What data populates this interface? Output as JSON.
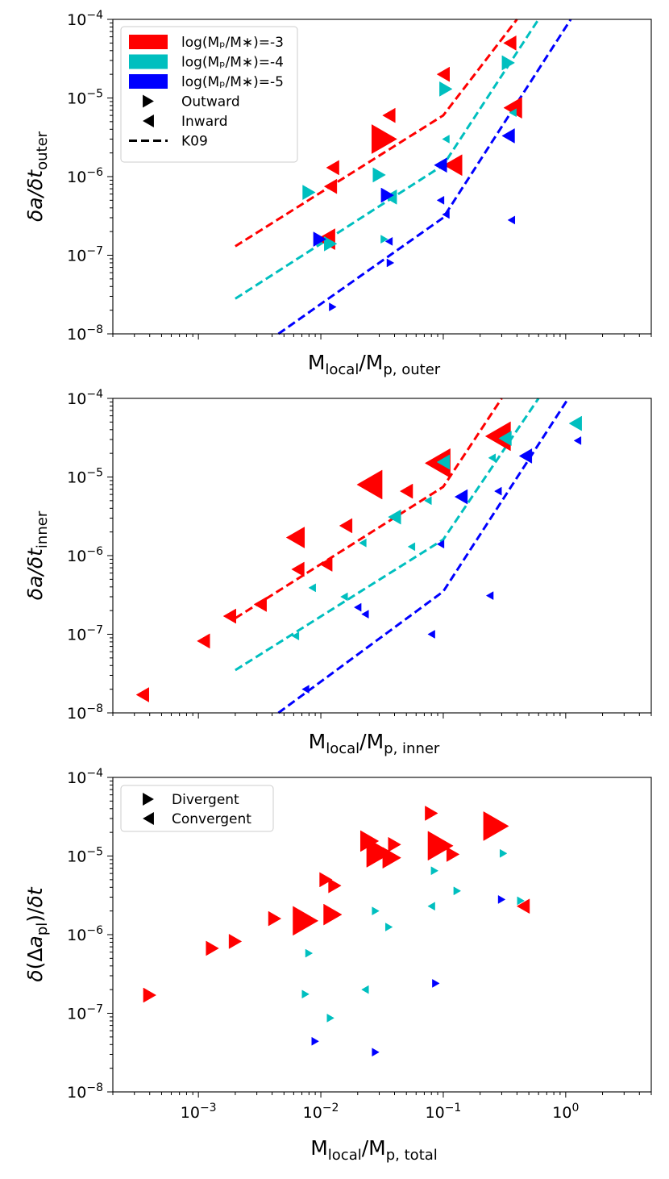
{
  "figure": {
    "type": "multi-panel log-log scatter",
    "colors": {
      "-3": "#ff0000",
      "-4": "#00bfbf",
      "-5": "#0000ff"
    },
    "legend_top": [
      {
        "label": "log(Mₚ/M∗)=-3",
        "kind": "patch",
        "color": "#ff0000"
      },
      {
        "label": "log(Mₚ/M∗)=-4",
        "kind": "patch",
        "color": "#00bfbf"
      },
      {
        "label": "log(Mₚ/M∗)=-5",
        "kind": "patch",
        "color": "#0000ff"
      },
      {
        "label": "Outward",
        "kind": "right"
      },
      {
        "label": "Inward",
        "kind": "left"
      },
      {
        "label": "K09",
        "kind": "dash"
      }
    ],
    "legend_bottom": [
      {
        "label": "Divergent",
        "kind": "right"
      },
      {
        "label": "Convergent",
        "kind": "left"
      }
    ]
  },
  "chart_data": [
    {
      "type": "scatter",
      "panel": "outer",
      "ylabel": "δa/δt_outer",
      "xlabel": "M_local/M_p,outer",
      "xscale": "log",
      "yscale": "log",
      "xlim": [
        0.0002,
        5
      ],
      "ylim": [
        1e-08,
        0.0001
      ],
      "show_xticklabels": false,
      "markers": [
        {
          "x": 0.012,
          "y": 7.5e-07,
          "c": "-3",
          "d": "L",
          "s": 1
        },
        {
          "x": 0.0125,
          "y": 1.3e-06,
          "c": "-3",
          "d": "L",
          "s": 1
        },
        {
          "x": 0.011,
          "y": 1.6e-07,
          "c": "-3",
          "d": "L",
          "s": 2
        },
        {
          "x": 0.033,
          "y": 3e-06,
          "c": "-3",
          "d": "R",
          "s": 3
        },
        {
          "x": 0.036,
          "y": 6e-06,
          "c": "-3",
          "d": "L",
          "s": 1
        },
        {
          "x": 0.1,
          "y": 2e-05,
          "c": "-3",
          "d": "L",
          "s": 1
        },
        {
          "x": 0.12,
          "y": 1.4e-06,
          "c": "-3",
          "d": "L",
          "s": 2
        },
        {
          "x": 0.35,
          "y": 5e-05,
          "c": "-3",
          "d": "L",
          "s": 1
        },
        {
          "x": 0.37,
          "y": 7.5e-06,
          "c": "-3",
          "d": "L",
          "s": 2
        },
        {
          "x": 0.008,
          "y": 6.3e-07,
          "c": "-4",
          "d": "R",
          "s": 1
        },
        {
          "x": 0.012,
          "y": 1.4e-07,
          "c": "-4",
          "d": "R",
          "s": 1
        },
        {
          "x": 0.03,
          "y": 1.05e-06,
          "c": "-4",
          "d": "R",
          "s": 1
        },
        {
          "x": 0.033,
          "y": 1.6e-07,
          "c": "-4",
          "d": "R",
          "s": 0
        },
        {
          "x": 0.037,
          "y": 5.5e-07,
          "c": "-4",
          "d": "L",
          "s": 1
        },
        {
          "x": 0.105,
          "y": 1.3e-05,
          "c": "-4",
          "d": "R",
          "s": 1
        },
        {
          "x": 0.105,
          "y": 3e-06,
          "c": "-4",
          "d": "L",
          "s": 0
        },
        {
          "x": 0.34,
          "y": 2.8e-05,
          "c": "-4",
          "d": "R",
          "s": 1
        },
        {
          "x": 0.37,
          "y": 6.5e-06,
          "c": "-4",
          "d": "L",
          "s": 0
        },
        {
          "x": 0.0098,
          "y": 1.6e-07,
          "c": "-5",
          "d": "R",
          "s": 1
        },
        {
          "x": 0.0125,
          "y": 2.2e-08,
          "c": "-5",
          "d": "R",
          "s": 0
        },
        {
          "x": 0.035,
          "y": 5.8e-07,
          "c": "-5",
          "d": "R",
          "s": 1
        },
        {
          "x": 0.036,
          "y": 1.5e-07,
          "c": "-5",
          "d": "L",
          "s": 0
        },
        {
          "x": 0.037,
          "y": 8e-08,
          "c": "-5",
          "d": "R",
          "s": 0
        },
        {
          "x": 0.095,
          "y": 1.4e-06,
          "c": "-5",
          "d": "L",
          "s": 1
        },
        {
          "x": 0.095,
          "y": 5e-07,
          "c": "-5",
          "d": "L",
          "s": 0
        },
        {
          "x": 0.105,
          "y": 3.3e-07,
          "c": "-5",
          "d": "L",
          "s": 0
        },
        {
          "x": 0.34,
          "y": 3.3e-06,
          "c": "-5",
          "d": "L",
          "s": 1
        },
        {
          "x": 0.36,
          "y": 2.8e-07,
          "c": "-5",
          "d": "L",
          "s": 0
        }
      ],
      "k09_lines": [
        {
          "c": "-3",
          "points": [
            [
              0.002,
              1.3e-07
            ],
            [
              0.1,
              6e-06
            ],
            [
              0.4,
              0.0001
            ]
          ]
        },
        {
          "c": "-4",
          "points": [
            [
              0.002,
              2.8e-08
            ],
            [
              0.1,
              1.4e-06
            ],
            [
              0.6,
              0.0001
            ]
          ]
        },
        {
          "c": "-5",
          "points": [
            [
              0.0045,
              1e-08
            ],
            [
              0.1,
              3e-07
            ],
            [
              1.1,
              0.0001
            ]
          ]
        }
      ]
    },
    {
      "type": "scatter",
      "panel": "inner",
      "ylabel": "δa/δt_inner",
      "xlabel": "M_local/M_p,inner",
      "xscale": "log",
      "yscale": "log",
      "xlim": [
        0.0002,
        5
      ],
      "ylim": [
        1e-08,
        0.0001
      ],
      "show_xticklabels": false,
      "markers": [
        {
          "x": 0.00035,
          "y": 1.7e-08,
          "c": "-3",
          "d": "L",
          "s": 1
        },
        {
          "x": 0.0011,
          "y": 8.2e-08,
          "c": "-3",
          "d": "L",
          "s": 1
        },
        {
          "x": 0.0018,
          "y": 1.7e-07,
          "c": "-3",
          "d": "L",
          "s": 1
        },
        {
          "x": 0.0032,
          "y": 2.4e-07,
          "c": "-3",
          "d": "L",
          "s": 1
        },
        {
          "x": 0.0062,
          "y": 1.7e-06,
          "c": "-3",
          "d": "L",
          "s": 2
        },
        {
          "x": 0.0065,
          "y": 6.7e-07,
          "c": "-3",
          "d": "L",
          "s": 1
        },
        {
          "x": 0.011,
          "y": 7.8e-07,
          "c": "-3",
          "d": "L",
          "s": 1
        },
        {
          "x": 0.016,
          "y": 2.4e-06,
          "c": "-3",
          "d": "L",
          "s": 1
        },
        {
          "x": 0.025,
          "y": 8e-06,
          "c": "-3",
          "d": "L",
          "s": 3
        },
        {
          "x": 0.05,
          "y": 6.6e-06,
          "c": "-3",
          "d": "L",
          "s": 1
        },
        {
          "x": 0.09,
          "y": 1.5e-05,
          "c": "-3",
          "d": "L",
          "s": 3
        },
        {
          "x": 0.28,
          "y": 3.3e-05,
          "c": "-3",
          "d": "L",
          "s": 3
        },
        {
          "x": 0.0062,
          "y": 9.5e-08,
          "c": "-4",
          "d": "L",
          "s": 0
        },
        {
          "x": 0.0085,
          "y": 3.9e-07,
          "c": "-4",
          "d": "L",
          "s": 0
        },
        {
          "x": 0.0155,
          "y": 3e-07,
          "c": "-4",
          "d": "L",
          "s": 0
        },
        {
          "x": 0.022,
          "y": 1.45e-06,
          "c": "-4",
          "d": "L",
          "s": 0
        },
        {
          "x": 0.04,
          "y": 3.1e-06,
          "c": "-4",
          "d": "L",
          "s": 1
        },
        {
          "x": 0.055,
          "y": 1.3e-06,
          "c": "-4",
          "d": "L",
          "s": 0
        },
        {
          "x": 0.075,
          "y": 5e-06,
          "c": "-4",
          "d": "L",
          "s": 0
        },
        {
          "x": 0.1,
          "y": 1.55e-05,
          "c": "-4",
          "d": "L",
          "s": 1
        },
        {
          "x": 0.25,
          "y": 1.75e-05,
          "c": "-4",
          "d": "L",
          "s": 0
        },
        {
          "x": 0.32,
          "y": 3.1e-05,
          "c": "-4",
          "d": "L",
          "s": 1
        },
        {
          "x": 1.2,
          "y": 4.8e-05,
          "c": "-4",
          "d": "L",
          "s": 1
        },
        {
          "x": 0.0075,
          "y": 2e-08,
          "c": "-5",
          "d": "L",
          "s": 0
        },
        {
          "x": 0.02,
          "y": 2.2e-07,
          "c": "-5",
          "d": "L",
          "s": 0
        },
        {
          "x": 0.023,
          "y": 1.8e-07,
          "c": "-5",
          "d": "L",
          "s": 0
        },
        {
          "x": 0.08,
          "y": 1e-07,
          "c": "-5",
          "d": "L",
          "s": 0
        },
        {
          "x": 0.095,
          "y": 1.4e-06,
          "c": "-5",
          "d": "L",
          "s": 0
        },
        {
          "x": 0.14,
          "y": 5.6e-06,
          "c": "-5",
          "d": "L",
          "s": 1
        },
        {
          "x": 0.24,
          "y": 3.1e-07,
          "c": "-5",
          "d": "L",
          "s": 0
        },
        {
          "x": 0.28,
          "y": 6.6e-06,
          "c": "-5",
          "d": "L",
          "s": 0
        },
        {
          "x": 0.47,
          "y": 1.85e-05,
          "c": "-5",
          "d": "L",
          "s": 1
        },
        {
          "x": 1.25,
          "y": 2.9e-05,
          "c": "-5",
          "d": "L",
          "s": 0
        }
      ],
      "k09_lines": [
        {
          "c": "-3",
          "points": [
            [
              0.002,
              1.6e-07
            ],
            [
              0.1,
              7.5e-06
            ],
            [
              0.3,
              0.0001
            ]
          ]
        },
        {
          "c": "-4",
          "points": [
            [
              0.002,
              3.5e-08
            ],
            [
              0.1,
              1.6e-06
            ],
            [
              0.6,
              0.0001
            ]
          ]
        },
        {
          "c": "-5",
          "points": [
            [
              0.0045,
              1e-08
            ],
            [
              0.1,
              3.5e-07
            ],
            [
              1.05,
              0.0001
            ]
          ]
        }
      ]
    },
    {
      "type": "scatter",
      "panel": "total",
      "ylabel": "δ(Δa_pl)/δt",
      "xlabel": "M_local/M_p,total",
      "xscale": "log",
      "yscale": "log",
      "xlim": [
        0.0002,
        5
      ],
      "ylim": [
        1e-08,
        0.0001
      ],
      "show_xticklabels": true,
      "xtick_labels": [
        "10⁻³",
        "10⁻²",
        "10⁻¹",
        "10⁰"
      ],
      "markers": [
        {
          "x": 0.0004,
          "y": 1.7e-07,
          "c": "-3",
          "d": "R",
          "s": 1
        },
        {
          "x": 0.0013,
          "y": 6.7e-07,
          "c": "-3",
          "d": "R",
          "s": 1
        },
        {
          "x": 0.002,
          "y": 8.2e-07,
          "c": "-3",
          "d": "R",
          "s": 1
        },
        {
          "x": 0.0042,
          "y": 1.6e-06,
          "c": "-3",
          "d": "R",
          "s": 1
        },
        {
          "x": 0.0075,
          "y": 1.5e-06,
          "c": "-3",
          "d": "R",
          "s": 3
        },
        {
          "x": 0.011,
          "y": 5e-06,
          "c": "-3",
          "d": "R",
          "s": 1
        },
        {
          "x": 0.0125,
          "y": 1.8e-06,
          "c": "-3",
          "d": "R",
          "s": 2
        },
        {
          "x": 0.013,
          "y": 4.2e-06,
          "c": "-3",
          "d": "R",
          "s": 1
        },
        {
          "x": 0.025,
          "y": 1.55e-05,
          "c": "-3",
          "d": "R",
          "s": 2
        },
        {
          "x": 0.03,
          "y": 1.1e-05,
          "c": "-3",
          "d": "R",
          "s": 3
        },
        {
          "x": 0.038,
          "y": 9.5e-06,
          "c": "-3",
          "d": "R",
          "s": 2
        },
        {
          "x": 0.04,
          "y": 1.4e-05,
          "c": "-3",
          "d": "R",
          "s": 1
        },
        {
          "x": 0.08,
          "y": 3.5e-05,
          "c": "-3",
          "d": "R",
          "s": 1
        },
        {
          "x": 0.095,
          "y": 1.35e-05,
          "c": "-3",
          "d": "R",
          "s": 3
        },
        {
          "x": 0.12,
          "y": 1.05e-05,
          "c": "-3",
          "d": "R",
          "s": 1
        },
        {
          "x": 0.27,
          "y": 2.4e-05,
          "c": "-3",
          "d": "R",
          "s": 3
        },
        {
          "x": 0.45,
          "y": 2.3e-06,
          "c": "-3",
          "d": "L",
          "s": 1
        },
        {
          "x": 0.0075,
          "y": 1.75e-07,
          "c": "-4",
          "d": "R",
          "s": 0
        },
        {
          "x": 0.008,
          "y": 5.8e-07,
          "c": "-4",
          "d": "R",
          "s": 0
        },
        {
          "x": 0.012,
          "y": 8.7e-08,
          "c": "-4",
          "d": "R",
          "s": 0
        },
        {
          "x": 0.023,
          "y": 2e-07,
          "c": "-4",
          "d": "L",
          "s": 0
        },
        {
          "x": 0.028,
          "y": 2e-06,
          "c": "-4",
          "d": "R",
          "s": 0
        },
        {
          "x": 0.036,
          "y": 1.25e-06,
          "c": "-4",
          "d": "R",
          "s": 0
        },
        {
          "x": 0.08,
          "y": 2.3e-06,
          "c": "-4",
          "d": "L",
          "s": 0
        },
        {
          "x": 0.085,
          "y": 6.5e-06,
          "c": "-4",
          "d": "R",
          "s": 0
        },
        {
          "x": 0.13,
          "y": 3.6e-06,
          "c": "-4",
          "d": "R",
          "s": 0
        },
        {
          "x": 0.31,
          "y": 1.08e-05,
          "c": "-4",
          "d": "R",
          "s": 0
        },
        {
          "x": 0.43,
          "y": 2.7e-06,
          "c": "-4",
          "d": "R",
          "s": 0
        },
        {
          "x": 0.009,
          "y": 4.4e-08,
          "c": "-5",
          "d": "R",
          "s": 0
        },
        {
          "x": 0.028,
          "y": 3.2e-08,
          "c": "-5",
          "d": "R",
          "s": 0
        },
        {
          "x": 0.087,
          "y": 2.4e-07,
          "c": "-5",
          "d": "R",
          "s": 0
        },
        {
          "x": 0.3,
          "y": 2.8e-06,
          "c": "-5",
          "d": "R",
          "s": 0
        }
      ],
      "k09_lines": []
    }
  ]
}
